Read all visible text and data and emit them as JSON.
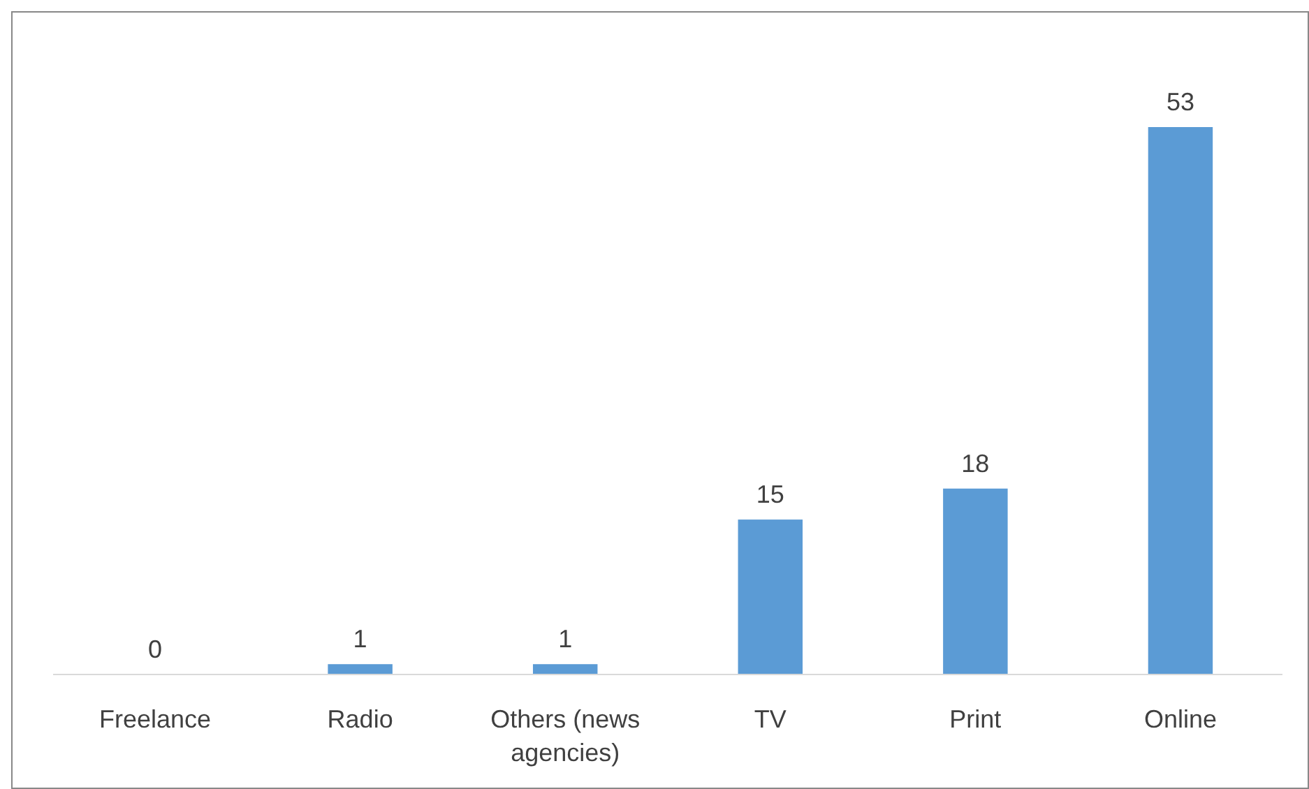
{
  "chart_data": {
    "type": "bar",
    "categories": [
      "Freelance",
      "Radio",
      "Others (news agencies)",
      "TV",
      "Print",
      "Online"
    ],
    "values": [
      0,
      1,
      1,
      15,
      18,
      53
    ],
    "color": "#5b9bd5",
    "data_labels": true
  }
}
